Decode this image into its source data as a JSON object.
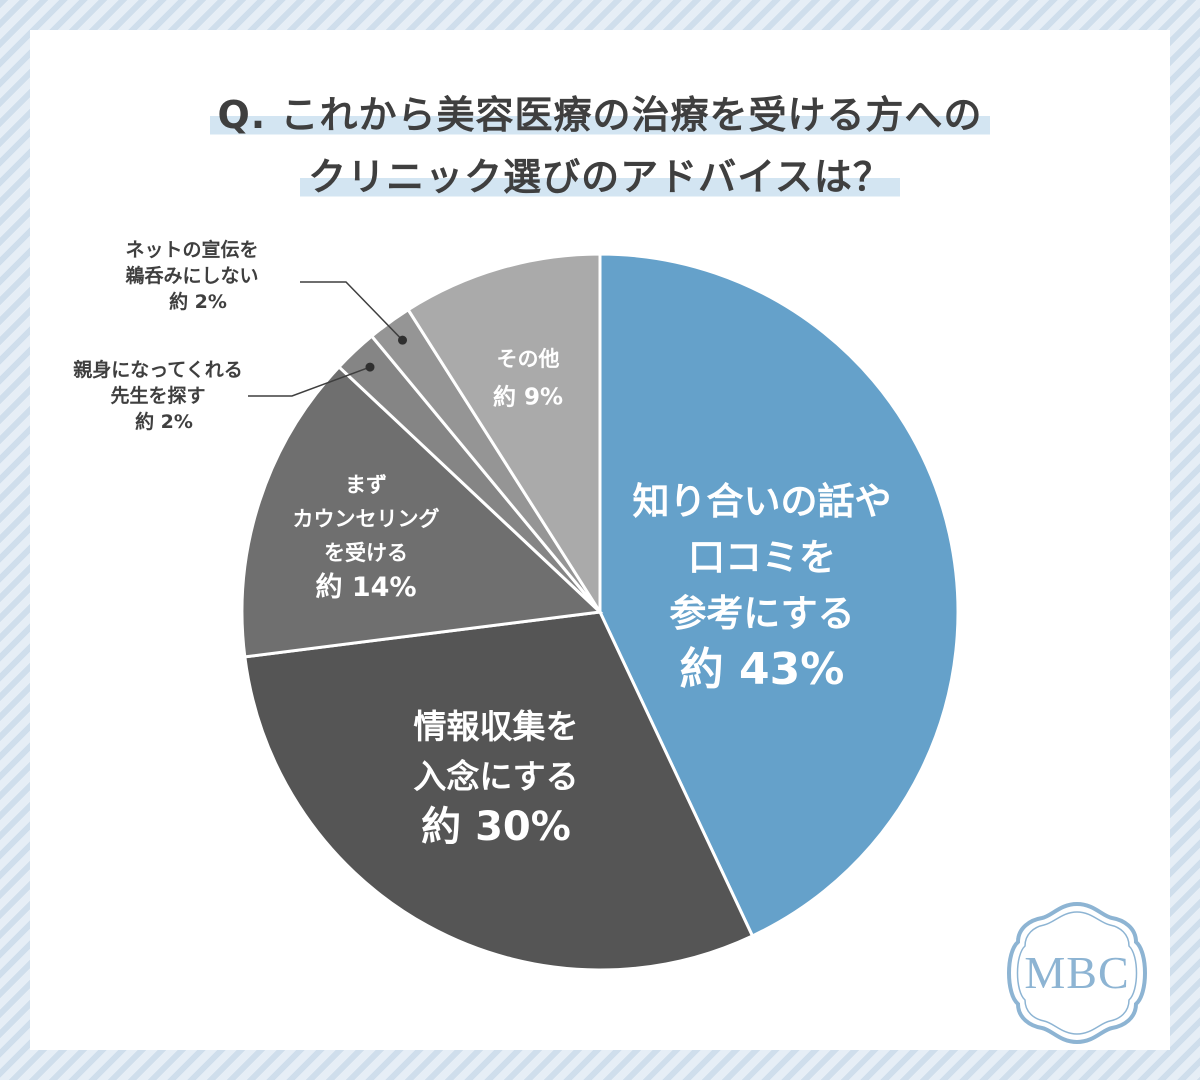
{
  "title": {
    "line1": "Q. これから美容医療の治療を受ける方への",
    "line2": "クリニック選びのアドバイスは？"
  },
  "colors": {
    "blue": "#65a1ca",
    "dark": "#555555",
    "medium": "#6f6f6f",
    "slice_small1": "#858585",
    "slice_small2": "#959595",
    "light": "#aaaaaa",
    "label_dark": "#3f3f3f",
    "logo": "#8db4d3"
  },
  "chart_data": {
    "type": "pie",
    "unit": "%",
    "slices": [
      {
        "label_lines": [
          "知り合いの話や",
          "口コミを",
          "参考にする"
        ],
        "pct_label": "約 43%",
        "value": 43,
        "color": "#65a1ca"
      },
      {
        "label_lines": [
          "情報収集を",
          "入念にする"
        ],
        "pct_label": "約 30%",
        "value": 30,
        "color": "#555555"
      },
      {
        "label_lines": [
          "まず",
          "カウンセリング",
          "を受ける"
        ],
        "pct_label": "約 14%",
        "value": 14,
        "color": "#6f6f6f"
      },
      {
        "label_lines": [
          "親身になってくれる",
          "先生を探す"
        ],
        "pct_label": "約 2%",
        "value": 2,
        "color": "#858585"
      },
      {
        "label_lines": [
          "ネットの宣伝を",
          "鵜呑みにしない"
        ],
        "pct_label": "約 2%",
        "value": 2,
        "color": "#959595"
      },
      {
        "label_lines": [
          "その他"
        ],
        "pct_label": "約 9%",
        "value": 9,
        "color": "#aaaaaa"
      }
    ]
  },
  "logo": {
    "text": "MBC"
  }
}
